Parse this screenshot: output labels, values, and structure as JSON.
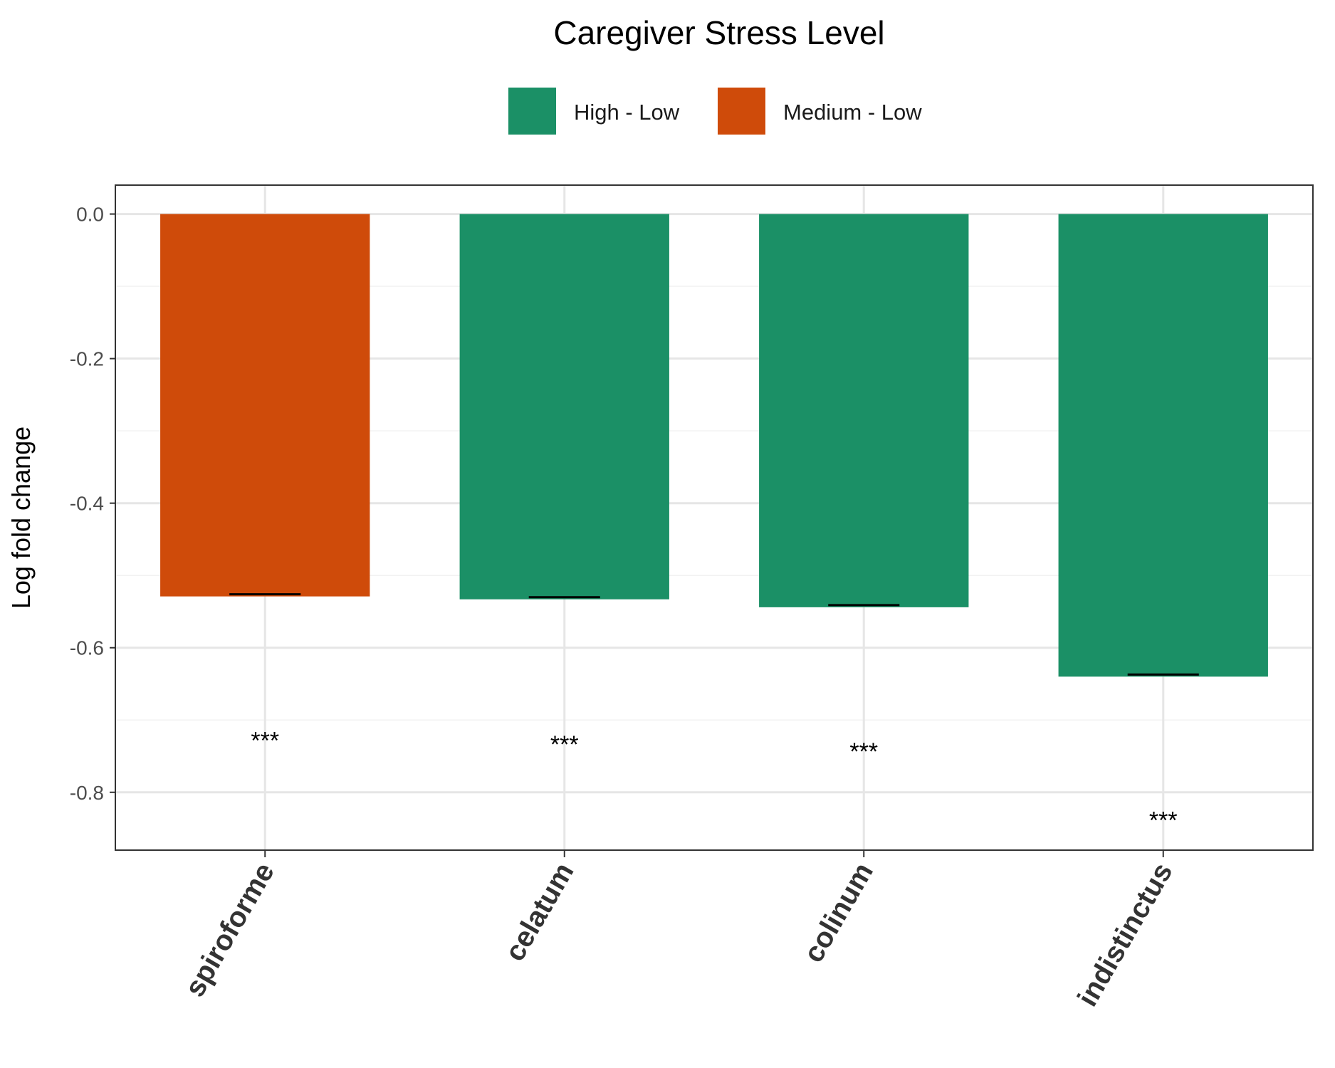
{
  "chart_data": {
    "type": "bar",
    "title": "Caregiver Stress Level",
    "xlabel": "",
    "ylabel": "Log fold change",
    "ylim": [
      -0.88,
      0.04
    ],
    "yticks": [
      "0.0",
      "-0.2",
      "-0.4",
      "-0.6",
      "-0.8"
    ],
    "ytick_values": [
      0.0,
      -0.2,
      -0.4,
      -0.6,
      -0.8
    ],
    "grid": true,
    "legend_position": "top",
    "legend": [
      {
        "label": "High - Low",
        "color": "#1b9066"
      },
      {
        "label": "Medium - Low",
        "color": "#cf4b0a"
      }
    ],
    "categories": [
      "spiroforme",
      "celatum",
      "colinum",
      "indistinctus"
    ],
    "bars": [
      {
        "category": "spiroforme",
        "group": "Medium - Low",
        "value": -0.529,
        "color": "#cf4b0a",
        "significance": "***",
        "significance_y": -0.73
      },
      {
        "category": "celatum",
        "group": "High - Low",
        "value": -0.533,
        "color": "#1b9066",
        "significance": "***",
        "significance_y": -0.735
      },
      {
        "category": "colinum",
        "group": "High - Low",
        "value": -0.544,
        "color": "#1b9066",
        "significance": "***",
        "significance_y": -0.745
      },
      {
        "category": "indistinctus",
        "group": "High - Low",
        "value": -0.64,
        "color": "#1b9066",
        "significance": "***",
        "significance_y": -0.84
      }
    ]
  }
}
